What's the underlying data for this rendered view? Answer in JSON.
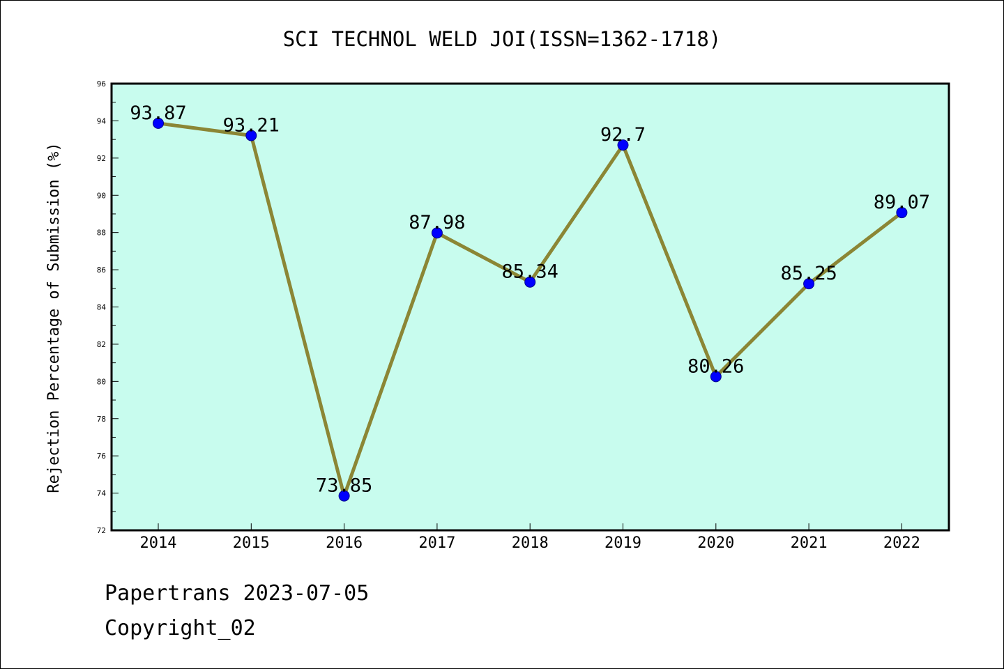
{
  "chart_data": {
    "type": "line",
    "title": "SCI TECHNOL WELD JOI(ISSN=1362-1718)",
    "xlabel": "",
    "ylabel": "Rejection Percentage of Submission (%)",
    "categories": [
      "2014",
      "2015",
      "2016",
      "2017",
      "2018",
      "2019",
      "2020",
      "2021",
      "2022"
    ],
    "values": [
      93.87,
      93.21,
      73.85,
      87.98,
      85.34,
      92.7,
      80.26,
      85.25,
      89.07
    ],
    "data_labels": [
      "93.87",
      "93.21",
      "73.85",
      "87.98",
      "85.34",
      "92.7",
      "80.26",
      "85.25",
      "89.07"
    ],
    "ylim": [
      72,
      96
    ],
    "yticks": [
      72,
      74,
      76,
      78,
      80,
      82,
      84,
      86,
      88,
      90,
      92,
      94,
      96
    ],
    "grid": false,
    "legend": "none",
    "colors": {
      "plot_background": "#c8fcee",
      "line": "#8b8635",
      "marker": "#0000ff",
      "marker_edge": "#00008b"
    }
  },
  "footer": {
    "line1": "Papertrans 2023-07-05",
    "line2": "Copyright_02"
  }
}
